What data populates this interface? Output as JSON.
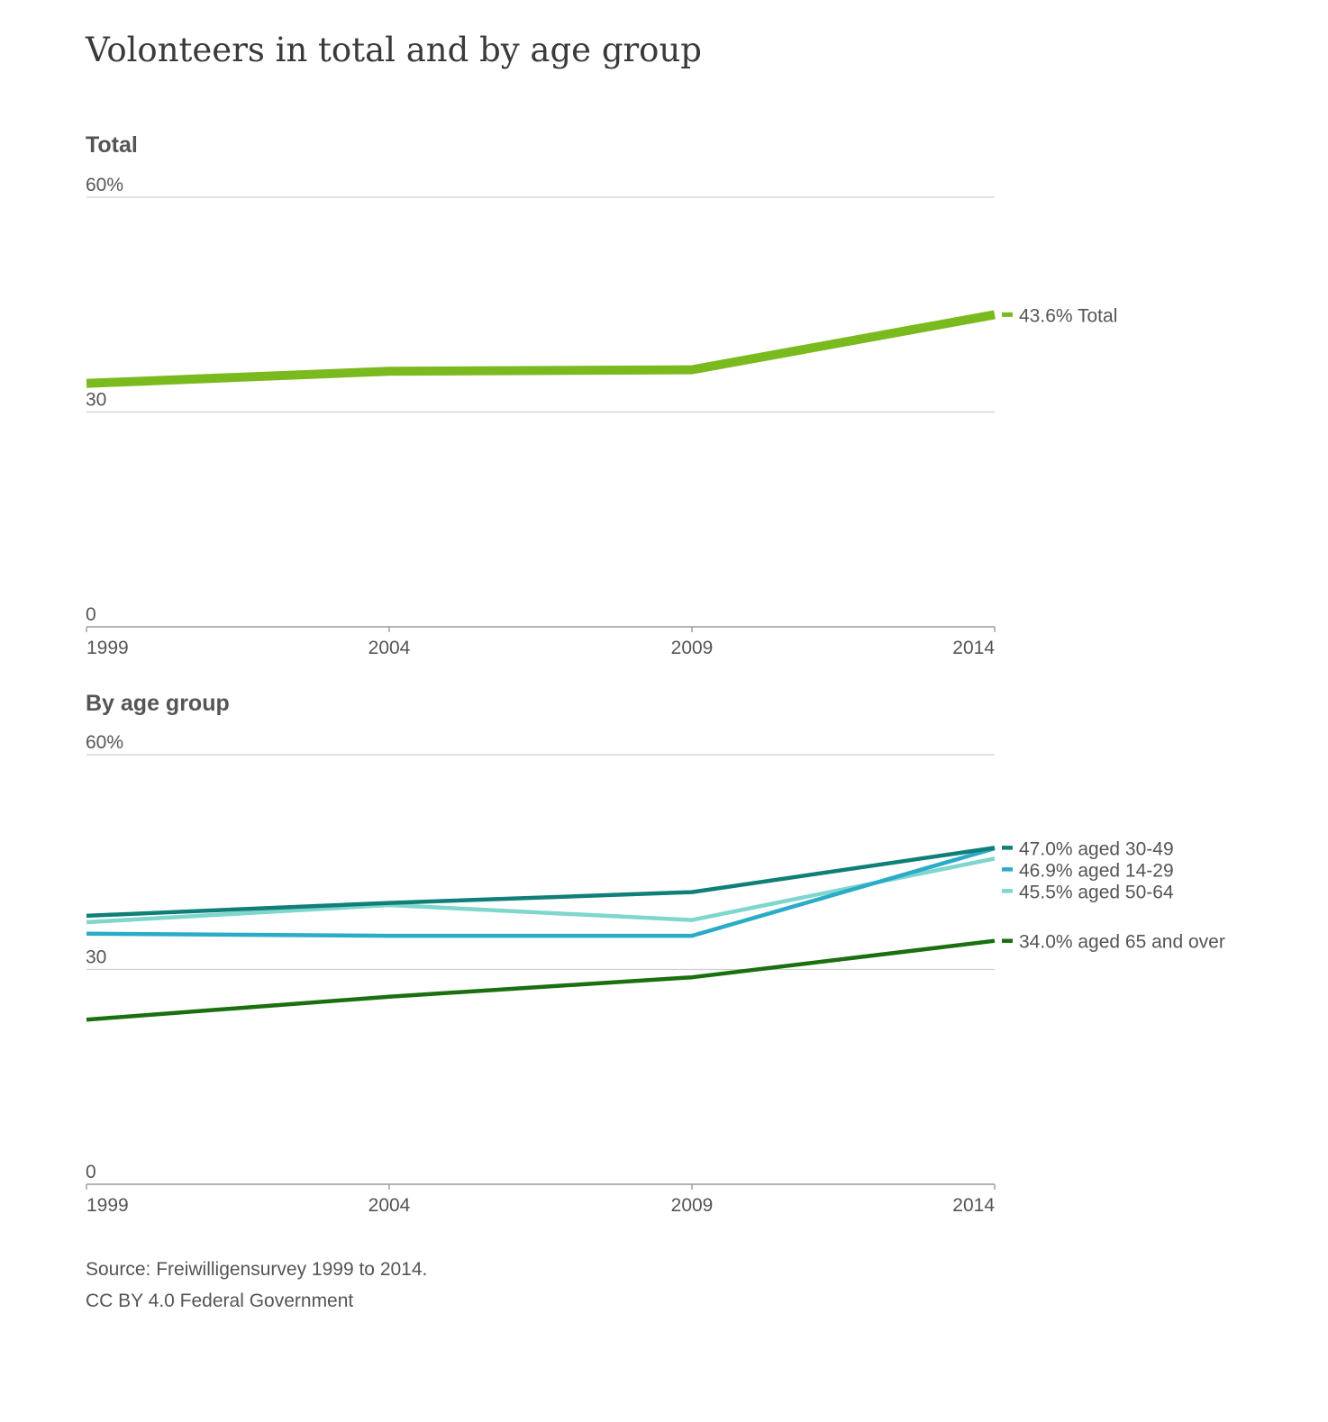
{
  "title": "Volonteers in total and by age group",
  "source": "Source: Freiwilligensurvey 1999 to 2014.",
  "license": "CC BY 4.0 Federal Government",
  "chart_data": [
    {
      "type": "line",
      "title": "Total",
      "x": [
        "1999",
        "2004",
        "2009",
        "2014"
      ],
      "ylim": [
        0,
        60
      ],
      "yticks": [
        "60%",
        "30",
        "0"
      ],
      "grid": true,
      "series": [
        {
          "name": "Total",
          "values": [
            34.0,
            35.7,
            35.9,
            43.6
          ],
          "label_value": "43.6%",
          "color": "#7aba1f"
        }
      ]
    },
    {
      "type": "line",
      "title": "By age group",
      "x": [
        "1999",
        "2004",
        "2009",
        "2014"
      ],
      "ylim": [
        0,
        60
      ],
      "yticks": [
        "60%",
        "30",
        "0"
      ],
      "grid": true,
      "series": [
        {
          "name": "aged 30-49",
          "values": [
            37.5,
            39.3,
            40.8,
            47.0
          ],
          "label_value": "47.0%",
          "color": "#0f7f78"
        },
        {
          "name": "aged 14-29",
          "values": [
            35.0,
            34.7,
            34.7,
            46.9
          ],
          "label_value": "46.9%",
          "color": "#2aabc8"
        },
        {
          "name": "aged 50-64",
          "values": [
            36.6,
            39.0,
            36.9,
            45.5
          ],
          "label_value": "45.5%",
          "color": "#7ed6cd"
        },
        {
          "name": "aged 65 and over",
          "values": [
            23.0,
            26.2,
            28.9,
            34.0
          ],
          "label_value": "34.0%",
          "color": "#1a6f0f"
        }
      ]
    }
  ]
}
